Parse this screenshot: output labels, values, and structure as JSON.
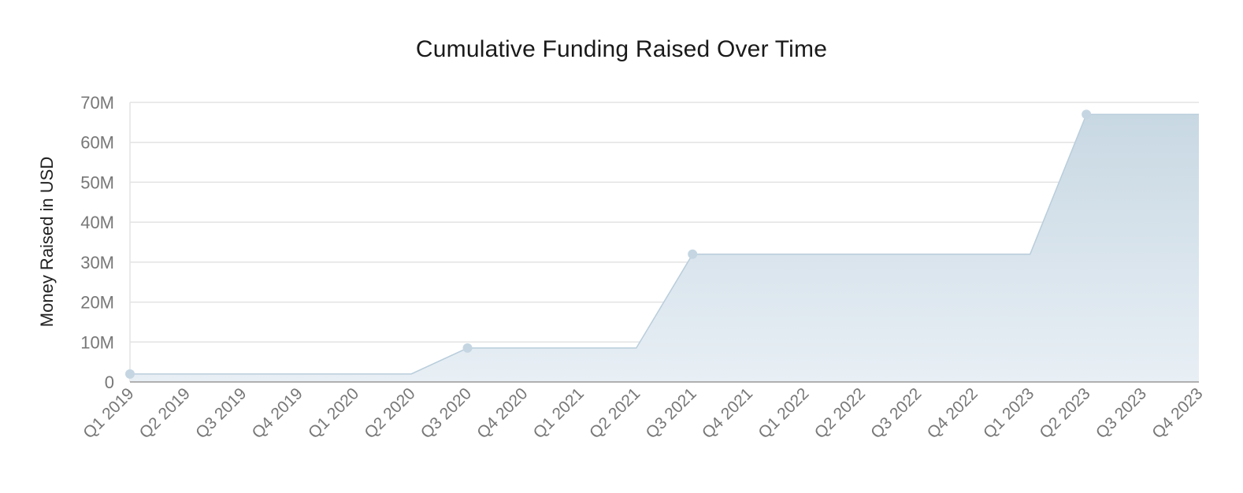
{
  "chart_data": {
    "type": "area",
    "title": "Cumulative Funding Raised Over Time",
    "xlabel": "",
    "ylabel": "Money Raised in USD",
    "categories": [
      "Q1 2019",
      "Q2 2019",
      "Q3 2019",
      "Q4 2019",
      "Q1 2020",
      "Q2 2020",
      "Q3 2020",
      "Q4 2020",
      "Q1 2021",
      "Q2 2021",
      "Q3 2021",
      "Q4 2021",
      "Q1 2022",
      "Q2 2022",
      "Q3 2022",
      "Q4 2022",
      "Q1 2023",
      "Q2 2023",
      "Q3 2023",
      "Q4 2023"
    ],
    "values": [
      2000000,
      2000000,
      2000000,
      2000000,
      2000000,
      2000000,
      8500000,
      8500000,
      8500000,
      8500000,
      32000000,
      32000000,
      32000000,
      32000000,
      32000000,
      32000000,
      32000000,
      67000000,
      67000000,
      67000000
    ],
    "markers": [
      "Q1 2019",
      "Q3 2020",
      "Q3 2021",
      "Q2 2023"
    ],
    "y_ticks": [
      0,
      10000000,
      20000000,
      30000000,
      40000000,
      50000000,
      60000000,
      70000000
    ],
    "y_tick_labels": [
      "0",
      "10M",
      "20M",
      "30M",
      "40M",
      "50M",
      "60M",
      "70M"
    ],
    "ylim": [
      0,
      70000000
    ],
    "grid": true,
    "legend": "none",
    "colors": {
      "area_fill_top": "#c8d8e3",
      "area_fill_bottom": "#e8eff5",
      "line": "#b9cddb",
      "marker": "#c5d6e2",
      "gridline": "#e3e3e3",
      "axis": "#999999"
    }
  }
}
